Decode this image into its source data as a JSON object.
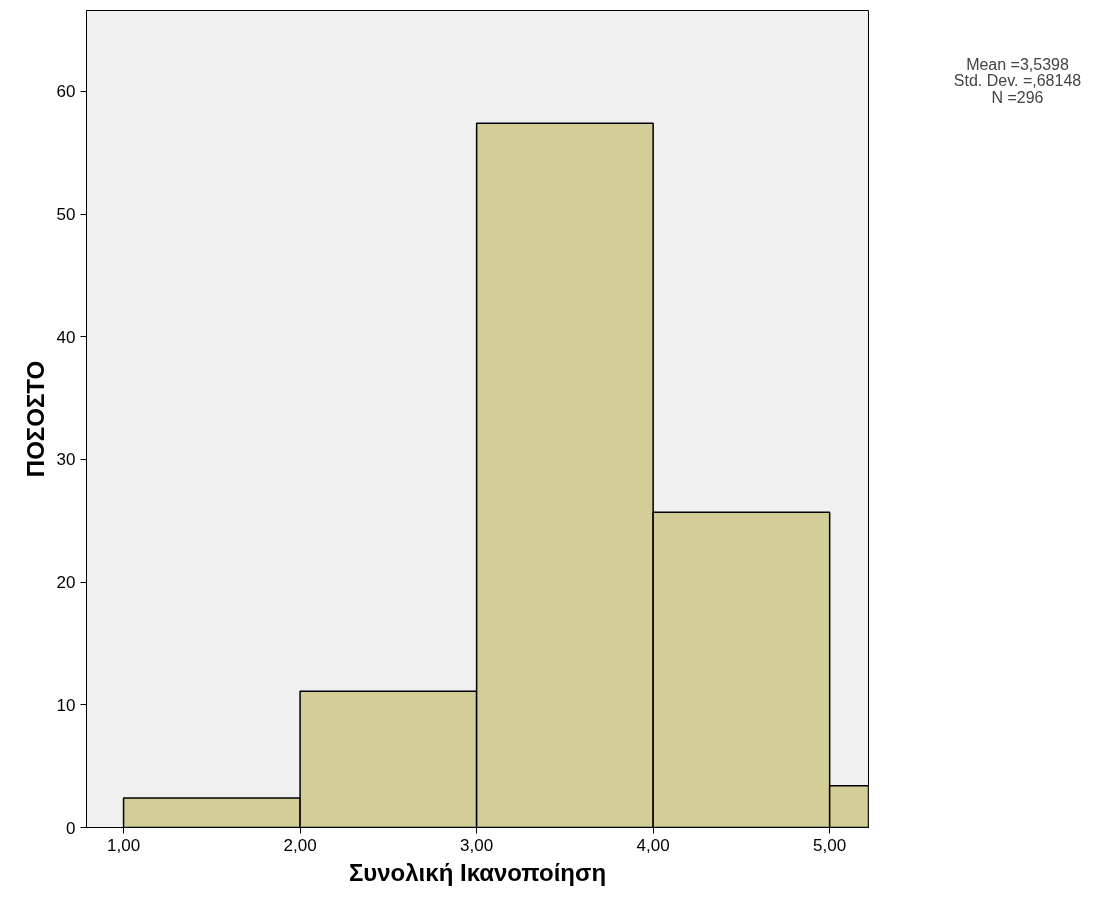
{
  "chart_data": {
    "type": "histogram",
    "xlabel": "Συνολική Ικανοποίηση",
    "ylabel": "ΠΟΣΟΣΤΟ",
    "bins": [
      1,
      2,
      3,
      4,
      5,
      5.22
    ],
    "values": [
      2.4,
      11.1,
      57.4,
      25.7,
      3.4
    ],
    "color": "#d3ce97",
    "xlim": [
      0.79,
      5.22
    ],
    "ylim": [
      0,
      66.6
    ],
    "xticks": [
      {
        "value": 1,
        "label": "1,00"
      },
      {
        "value": 2,
        "label": "2,00"
      },
      {
        "value": 3,
        "label": "3,00"
      },
      {
        "value": 4,
        "label": "4,00"
      },
      {
        "value": 5,
        "label": "5,00"
      }
    ],
    "yticks": [
      0,
      10,
      20,
      30,
      40,
      50,
      60
    ],
    "grid": false,
    "annotations": [
      "Mean =3,5398",
      "Std. Dev. =,68148",
      "N =296"
    ]
  }
}
